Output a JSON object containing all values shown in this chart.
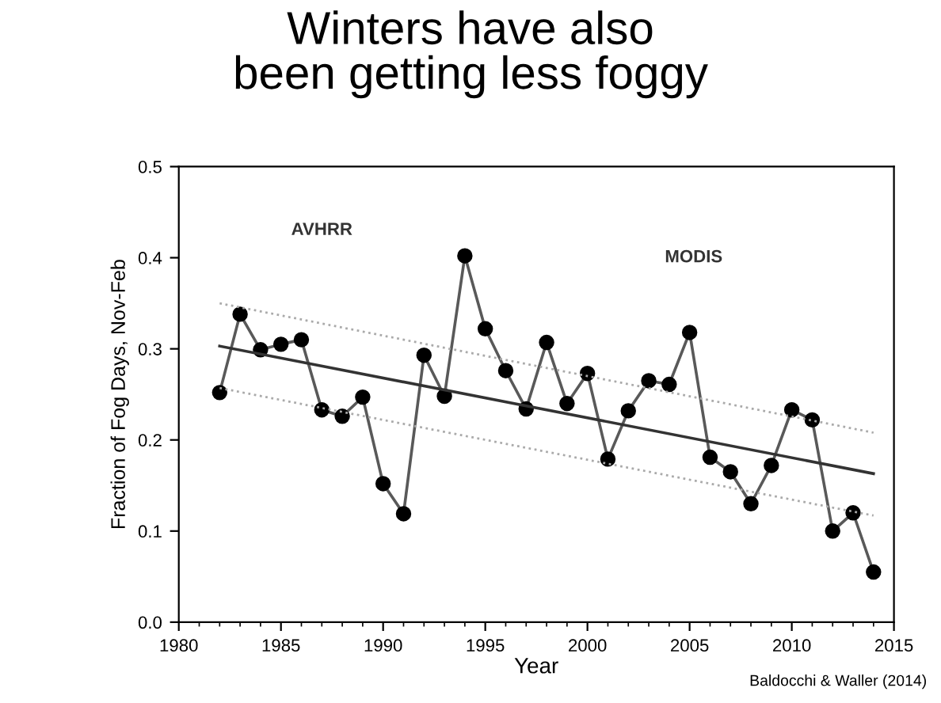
{
  "chart_data": {
    "type": "line",
    "title": "Winters have also\nbeen getting less foggy",
    "xlabel": "Year",
    "ylabel": "Fraction of Fog Days, Nov-Feb",
    "xlim": [
      1980,
      2015
    ],
    "xticks": [
      1980,
      1985,
      1990,
      1995,
      2000,
      2005,
      2010,
      2015
    ],
    "ylim": [
      0.0,
      0.5
    ],
    "yticks": [
      {
        "value": 0.0,
        "label": "0.0"
      },
      0.1,
      0.2,
      0.3,
      0.4,
      0.5
    ],
    "grid": false,
    "legend": false,
    "series": [
      {
        "color": "#595959",
        "marker": "circle",
        "line_style": "solid",
        "x": [
          1982,
          1983,
          1984,
          1985,
          1986,
          1987,
          1988,
          1989,
          1990,
          1991,
          1992,
          1993,
          1994,
          1995,
          1996,
          1997,
          1998,
          1999,
          2000,
          2001,
          2002,
          2003,
          2004,
          2005,
          2006,
          2007,
          2008,
          2009,
          2010,
          2011,
          2012,
          2013,
          2014
        ],
        "values": [
          0.252,
          0.338,
          0.299,
          0.305,
          0.31,
          0.233,
          0.226,
          0.247,
          0.152,
          0.119,
          0.293,
          0.248,
          0.402,
          0.322,
          0.276,
          0.234,
          0.307,
          0.24,
          0.273,
          0.179,
          0.232,
          0.265,
          0.261,
          0.318,
          0.181,
          0.165,
          0.13,
          0.172,
          0.233,
          0.222,
          0.1,
          0.12,
          0.055
        ]
      },
      {
        "color": "#333333",
        "marker": "none",
        "line_style": "solid",
        "x": [
          1982,
          2014
        ],
        "values": [
          0.303,
          0.163
        ]
      },
      {
        "color": "#aaaaaa",
        "marker": "none",
        "line_style": "dotted",
        "x": [
          1982,
          2014
        ],
        "values": [
          0.35,
          0.208
        ]
      },
      {
        "color": "#aaaaaa",
        "marker": "none",
        "line_style": "dotted",
        "x": [
          1982,
          2014
        ],
        "values": [
          0.257,
          0.117
        ]
      }
    ],
    "annotations": [
      "AVHRR",
      "MODIS",
      "Baldocchi & Waller (2014)"
    ]
  }
}
